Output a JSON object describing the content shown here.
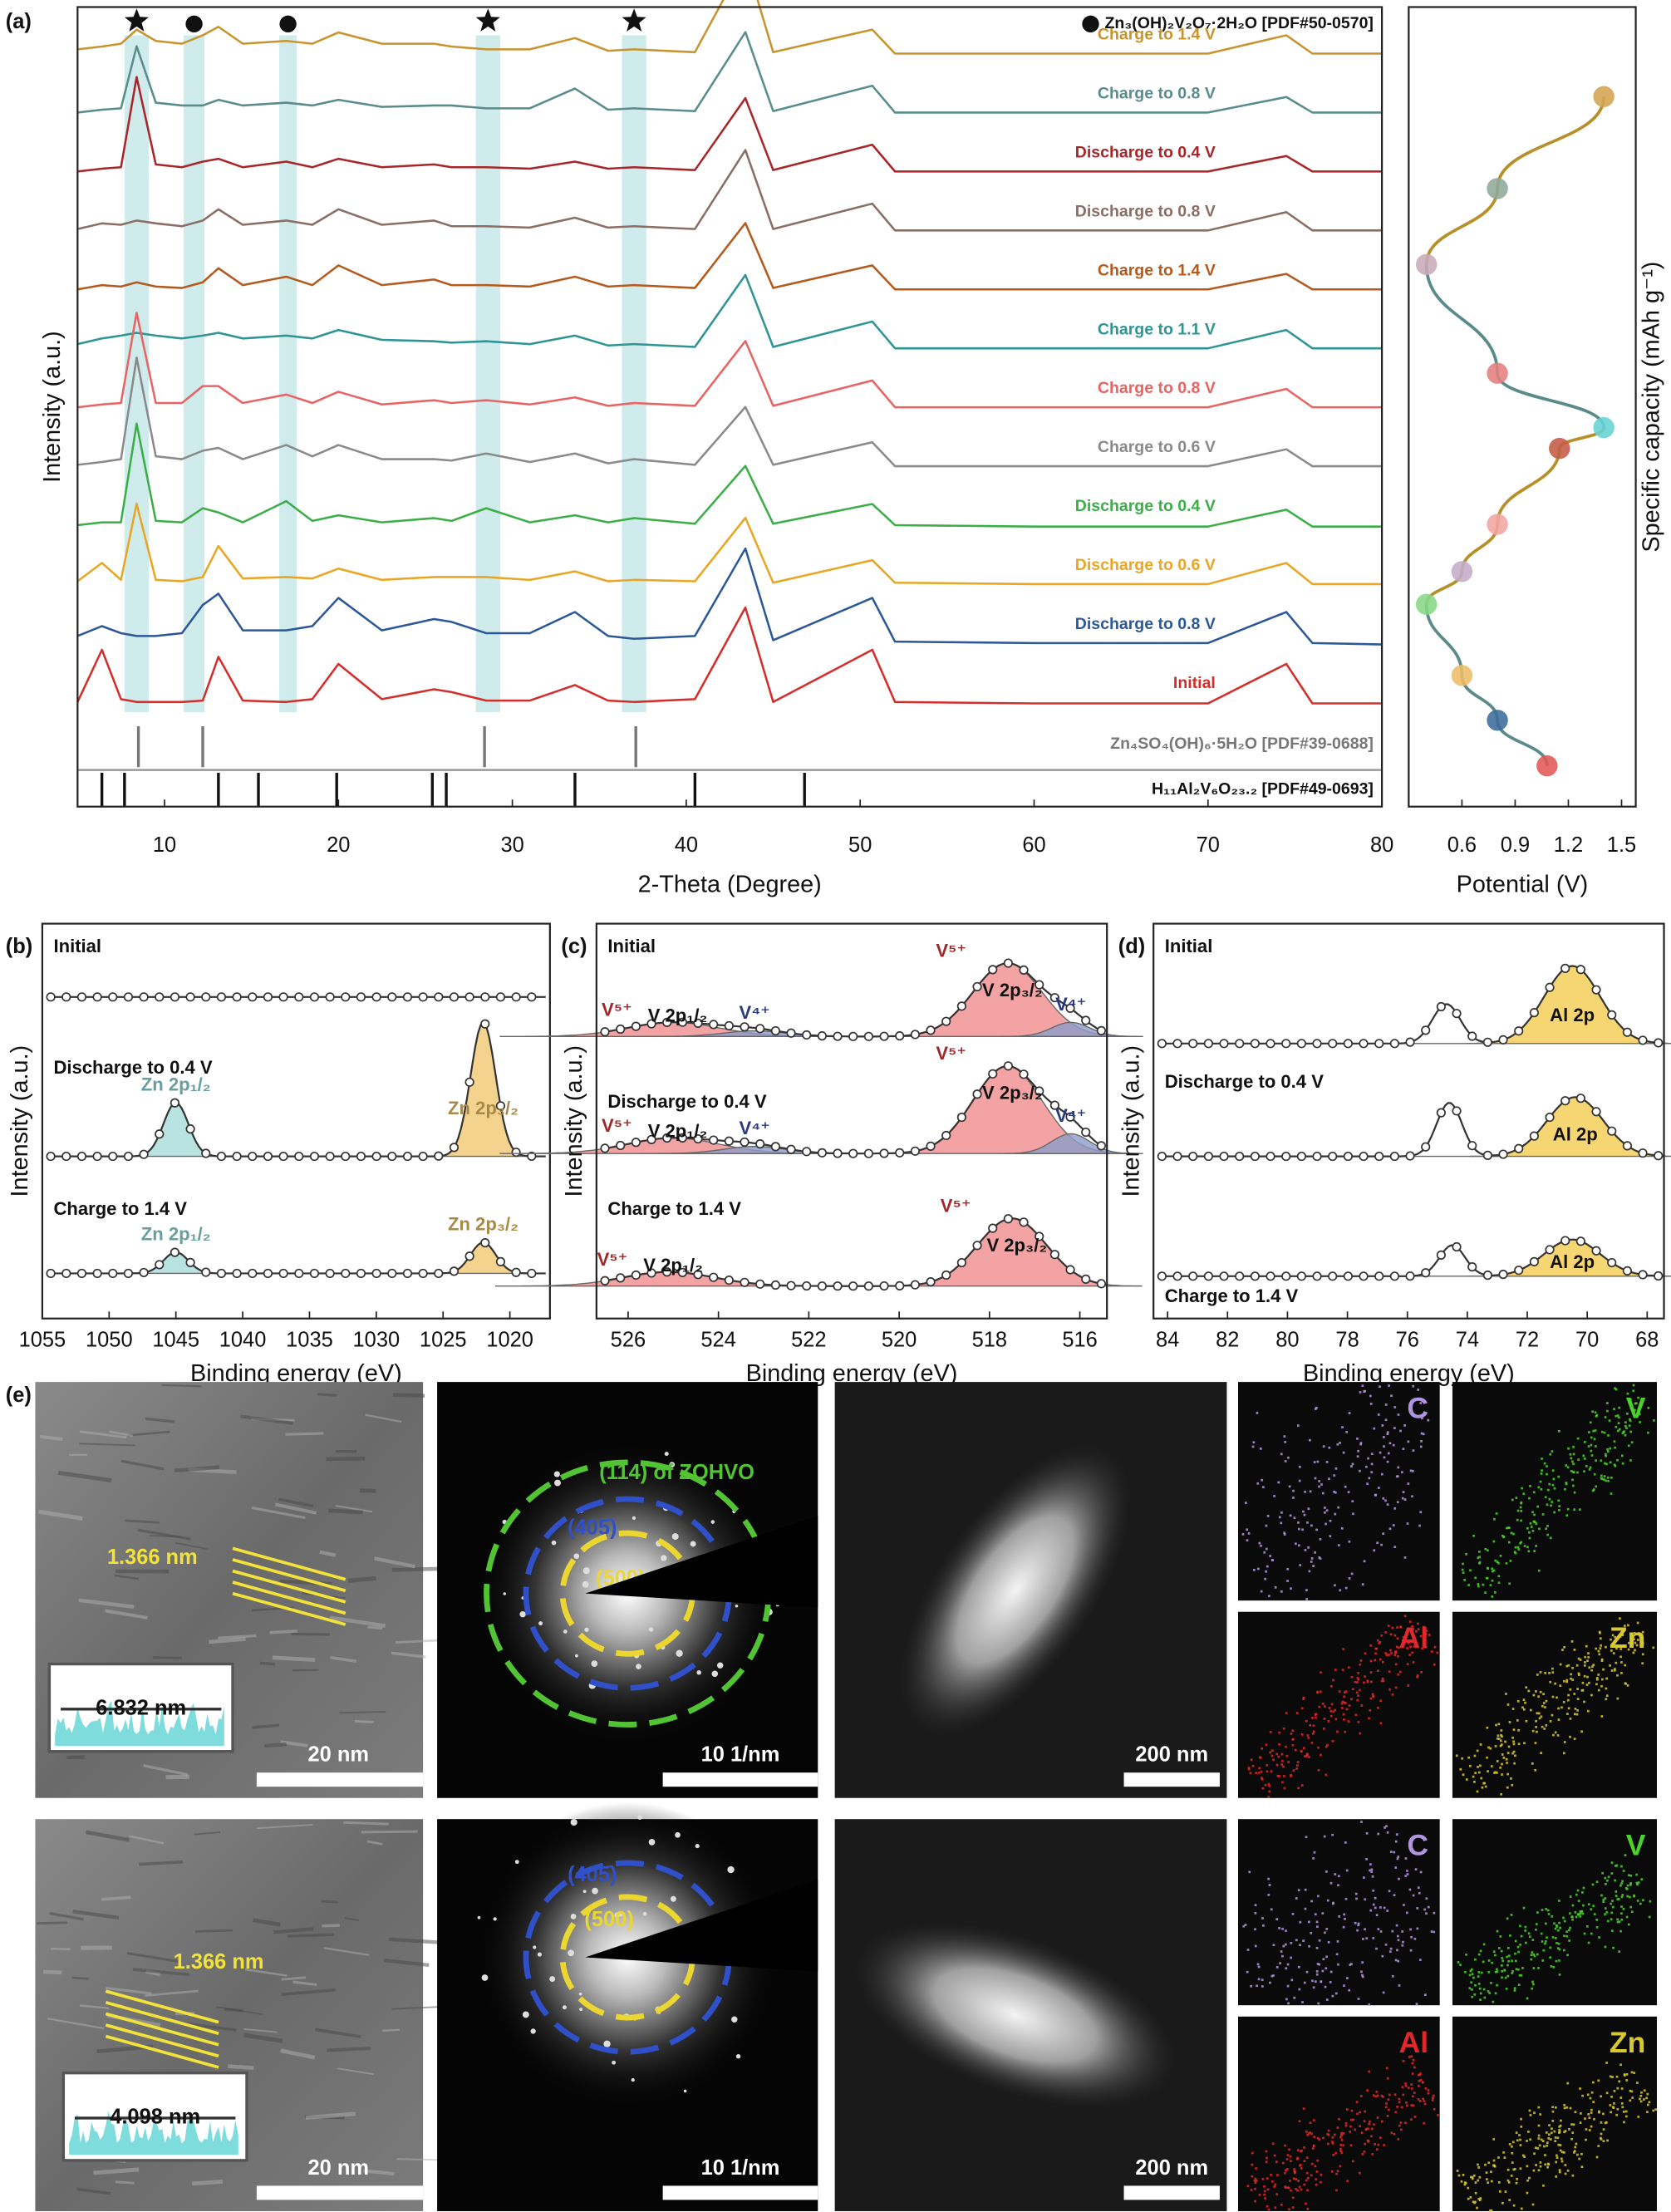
{
  "chart_data": [
    {
      "type": "line",
      "panel_label": "(a)",
      "xlabel": "2-Theta (Degree)",
      "ylabel": "Intensity (a.u.)",
      "xlim": [
        5,
        80
      ],
      "xticks": [
        10,
        20,
        30,
        40,
        50,
        60,
        70,
        80
      ],
      "x": [
        5,
        6.4,
        7.5,
        8.4,
        9.5,
        11,
        12.2,
        13.1,
        14.5,
        17,
        18.5,
        20,
        22.5,
        25.5,
        26.5,
        28.5,
        31,
        33.6,
        35.5,
        37,
        40.5,
        43.4,
        45,
        50.7,
        52,
        60,
        70,
        74.5,
        76,
        80
      ],
      "series": [
        {
          "name": "Charge to 1.4 V",
          "color": "#c8942e",
          "values": [
            6,
            8,
            10,
            20,
            12,
            10,
            16,
            22,
            10,
            12,
            10,
            18,
            10,
            10,
            8,
            6,
            6,
            14,
            5,
            6,
            4,
            70,
            4,
            20,
            3,
            3,
            3,
            16,
            3,
            3
          ]
        },
        {
          "name": "Charge to 0.8 V",
          "color": "#5a8c8c",
          "values": [
            3,
            5,
            6,
            50,
            10,
            8,
            8,
            12,
            8,
            10,
            8,
            12,
            7,
            8,
            8,
            6,
            6,
            20,
            5,
            6,
            4,
            60,
            4,
            22,
            3,
            3,
            3,
            14,
            3,
            3
          ]
        },
        {
          "name": "Discharge to 0.4 V",
          "color": "#a8262a",
          "values": [
            3,
            5,
            6,
            70,
            8,
            6,
            10,
            12,
            6,
            10,
            6,
            12,
            6,
            8,
            6,
            6,
            5,
            10,
            5,
            6,
            4,
            55,
            4,
            22,
            3,
            3,
            3,
            14,
            3,
            3
          ]
        },
        {
          "name": "Discharge to 0.8 V",
          "color": "#8a6e66",
          "values": [
            4,
            8,
            7,
            10,
            8,
            6,
            10,
            18,
            7,
            10,
            7,
            18,
            7,
            10,
            6,
            6,
            5,
            12,
            5,
            6,
            4,
            60,
            4,
            22,
            3,
            3,
            3,
            16,
            3,
            3
          ]
        },
        {
          "name": "Charge to 1.4 V",
          "color": "#b45a1e",
          "values": [
            3,
            6,
            5,
            8,
            5,
            4,
            8,
            18,
            6,
            12,
            6,
            20,
            6,
            10,
            6,
            6,
            5,
            12,
            5,
            6,
            4,
            50,
            4,
            20,
            3,
            3,
            3,
            14,
            3,
            3
          ]
        },
        {
          "name": "Charge to 1.1 V",
          "color": "#2e9494",
          "values": [
            6,
            10,
            12,
            14,
            12,
            10,
            12,
            14,
            10,
            12,
            10,
            16,
            9,
            8,
            7,
            8,
            6,
            12,
            5,
            6,
            4,
            55,
            4,
            22,
            3,
            3,
            3,
            16,
            3,
            3
          ]
        },
        {
          "name": "Charge to 0.8 V",
          "color": "#e86464",
          "values": [
            3,
            5,
            6,
            70,
            6,
            6,
            18,
            18,
            6,
            12,
            6,
            14,
            5,
            8,
            6,
            8,
            5,
            10,
            4,
            6,
            4,
            50,
            4,
            22,
            3,
            3,
            3,
            16,
            3,
            3
          ]
        },
        {
          "name": "Charge to 0.6 V",
          "color": "#8a8a8a",
          "values": [
            4,
            6,
            8,
            80,
            10,
            8,
            14,
            16,
            8,
            18,
            10,
            18,
            8,
            8,
            7,
            12,
            6,
            12,
            5,
            8,
            4,
            45,
            4,
            20,
            3,
            3,
            3,
            15,
            3,
            3
          ]
        },
        {
          "name": "Discharge to 0.4 V",
          "color": "#3cae48",
          "values": [
            3,
            5,
            5,
            75,
            6,
            5,
            15,
            12,
            5,
            20,
            6,
            10,
            5,
            8,
            6,
            15,
            5,
            10,
            5,
            8,
            4,
            45,
            4,
            18,
            3,
            2,
            2,
            14,
            2,
            2
          ]
        },
        {
          "name": "Discharge to 0.6 V",
          "color": "#e8a624",
          "values": [
            5,
            18,
            6,
            60,
            6,
            5,
            8,
            30,
            7,
            8,
            7,
            14,
            6,
            8,
            8,
            8,
            6,
            12,
            5,
            6,
            5,
            50,
            4,
            20,
            4,
            3,
            3,
            18,
            3,
            3
          ]
        },
        {
          "name": "Discharge to 0.8 V",
          "color": "#2c5898",
          "values": [
            8,
            15,
            10,
            8,
            8,
            10,
            30,
            38,
            12,
            12,
            15,
            35,
            12,
            20,
            18,
            10,
            10,
            25,
            8,
            6,
            8,
            70,
            5,
            35,
            4,
            3,
            3,
            25,
            3,
            2
          ]
        },
        {
          "name": "Initial",
          "color": "#d42e2c",
          "values": [
            3,
            40,
            5,
            3,
            3,
            3,
            4,
            35,
            4,
            3,
            5,
            30,
            5,
            12,
            10,
            4,
            4,
            15,
            4,
            3,
            5,
            70,
            3,
            40,
            3,
            2,
            2,
            30,
            2,
            2
          ]
        }
      ],
      "bands": [
        {
          "from": 7.7,
          "to": 9.1,
          "marker": "star"
        },
        {
          "from": 11.1,
          "to": 12.3,
          "marker": "circle"
        },
        {
          "from": 16.6,
          "to": 17.6,
          "marker": "circle"
        },
        {
          "from": 27.9,
          "to": 29.3,
          "marker": "star"
        },
        {
          "from": 36.3,
          "to": 37.7,
          "marker": "star"
        }
      ],
      "band_color": "#a8dada",
      "legend": {
        "marker": "circle",
        "label": "Zn₃(OH)₂V₂O₇·2H₂O [PDF#50-0570]"
      },
      "references": [
        {
          "name": "Zn₄SO₄(OH)₆·5H₂O [PDF#39-0688]",
          "color": "#777777",
          "positions": [
            8.5,
            12.2,
            28.4,
            37.1
          ]
        },
        {
          "name": "H₁₁Al₂V₆O₂₃.₂ [PDF#49-0693]",
          "color": "#111111",
          "positions": [
            6.4,
            7.7,
            13.1,
            15.4,
            19.9,
            25.4,
            26.2,
            33.6,
            40.5,
            46.8
          ]
        }
      ]
    },
    {
      "type": "scatter",
      "xlabel": "Potential (V)",
      "ylabel": "Specific capacity (mAh g⁻¹)",
      "xlim": [
        0.3,
        1.58
      ],
      "xticks": [
        0.6,
        0.9,
        1.2,
        1.5
      ],
      "ylim": [
        0,
        100
      ],
      "x": [
        1.08,
        0.8,
        0.6,
        0.4,
        0.6,
        0.8,
        1.15,
        1.4,
        0.8,
        0.4,
        0.8,
        1.4
      ],
      "values": [
        5.1,
        10.8,
        16.4,
        25.3,
        29.4,
        35.3,
        44.8,
        47.4,
        54.2,
        67.8,
        77.3,
        88.8
      ],
      "colors": [
        "#e25656",
        "#3c6c98",
        "#eebc66",
        "#86d886",
        "#c4acc8",
        "#f2a4a4",
        "#c45a44",
        "#66d4d4",
        "#e48080",
        "#c8aab8",
        "#8ea898",
        "#d4a452"
      ],
      "charge_color": "#b8902a",
      "discharge_color": "#5a8a8a"
    },
    {
      "type": "area",
      "panel_label": "(b)",
      "xlabel": "Binding energy (eV)",
      "ylabel": "Intensity (a.u.)",
      "xlim": [
        1055,
        1017
      ],
      "xticks": [
        1055,
        1050,
        1045,
        1040,
        1035,
        1030,
        1025,
        1020
      ],
      "spectra": [
        {
          "name": "Initial",
          "components": []
        },
        {
          "name": "Discharge to 0.4 V",
          "components": [
            {
              "label": "Zn 2p₁/₂",
              "center": 1045,
              "height": 38,
              "width": 2.2,
              "color": "#a8dcd8",
              "label_color": "#6a9e9e"
            },
            {
              "label": "Zn 2p₃/₂",
              "center": 1022,
              "height": 95,
              "width": 2.2,
              "color": "#f0c870",
              "label_color": "#a88a48"
            }
          ]
        },
        {
          "name": "Charge to 1.4 V",
          "components": [
            {
              "label": "Zn 2p₁/₂",
              "center": 1045,
              "height": 15,
              "width": 2.2,
              "color": "#a8dcd8",
              "label_color": "#6a9e9e"
            },
            {
              "label": "Zn 2p₃/₂",
              "center": 1022,
              "height": 22,
              "width": 2.2,
              "color": "#f0c870",
              "label_color": "#a88a48"
            }
          ]
        }
      ]
    },
    {
      "type": "area",
      "panel_label": "(c)",
      "xlabel": "Binding energy (eV)",
      "ylabel": "Intensity (a.u.)",
      "xlim": [
        526.7,
        515.4
      ],
      "xticks": [
        526,
        524,
        522,
        520,
        518,
        516
      ],
      "spectra": [
        {
          "name": "Initial",
          "components": [
            {
              "label": "V⁵⁺",
              "orbital": "V 2p₁/₂",
              "center": 525,
              "height": 10,
              "width": 2.4,
              "color": "#f08c8c",
              "label_color": "#a0282a"
            },
            {
              "label": "V⁴⁺",
              "center": 523.2,
              "height": 4,
              "width": 1.6,
              "color": "#8c9cc8",
              "label_color": "#2a3a80"
            },
            {
              "label": "V⁵⁺",
              "orbital": "V 2p₃/₂",
              "center": 517.6,
              "height": 52,
              "width": 1.8,
              "color": "#f08c8c",
              "label_color": "#a0282a"
            },
            {
              "label": "V⁴⁺",
              "center": 516.2,
              "height": 10,
              "width": 1,
              "color": "#8c9cc8",
              "label_color": "#2a3a80"
            }
          ]
        },
        {
          "name": "Discharge to 0.4 V",
          "components": [
            {
              "label": "V⁵⁺",
              "orbital": "V 2p₁/₂",
              "center": 525,
              "height": 11,
              "width": 2.4,
              "color": "#f08c8c",
              "label_color": "#a0282a"
            },
            {
              "label": "V⁴⁺",
              "center": 523.2,
              "height": 5,
              "width": 1.6,
              "color": "#8c9cc8",
              "label_color": "#2a3a80"
            },
            {
              "label": "V⁵⁺",
              "orbital": "V 2p₃/₂",
              "center": 517.6,
              "height": 62,
              "width": 1.8,
              "color": "#f08c8c",
              "label_color": "#a0282a"
            },
            {
              "label": "V⁴⁺",
              "center": 516.2,
              "height": 14,
              "width": 1,
              "color": "#8c9cc8",
              "label_color": "#2a3a80"
            }
          ]
        },
        {
          "name": "Charge to 1.4 V",
          "components": [
            {
              "label": "V⁵⁺",
              "orbital": "V 2p₁/₂",
              "center": 525.1,
              "height": 10,
              "width": 2.4,
              "color": "#f08c8c",
              "label_color": "#a0282a"
            },
            {
              "label": "V⁵⁺",
              "orbital": "V 2p₃/₂",
              "center": 517.5,
              "height": 48,
              "width": 1.8,
              "color": "#f08c8c",
              "label_color": "#a0282a"
            }
          ]
        }
      ]
    },
    {
      "type": "area",
      "panel_label": "(d)",
      "xlabel": "Binding energy (eV)",
      "ylabel": "Intensity (a.u.)",
      "xlim": [
        84.47,
        67.44
      ],
      "xticks": [
        84,
        82,
        80,
        78,
        76,
        74,
        72,
        70,
        68
      ],
      "spectra": [
        {
          "name": "Initial",
          "components": [
            {
              "center": 74.7,
              "height": 28,
              "width": 1.1,
              "color": "#ffffff"
            },
            {
              "label": "Al 2p",
              "center": 70.5,
              "height": 55,
              "width": 2.2,
              "color": "#f2cc50",
              "label_color": "#111111"
            }
          ]
        },
        {
          "name": "Discharge to 0.4 V",
          "components": [
            {
              "center": 74.6,
              "height": 38,
              "width": 1,
              "color": "#ffffff"
            },
            {
              "label": "Al 2p",
              "center": 70.4,
              "height": 42,
              "width": 2.2,
              "color": "#f2cc50",
              "label_color": "#111111"
            }
          ]
        },
        {
          "name": "Charge to 1.4 V",
          "components": [
            {
              "center": 74.5,
              "height": 22,
              "width": 1,
              "color": "#ffffff"
            },
            {
              "label": "Al 2p",
              "center": 70.5,
              "height": 26,
              "width": 2.2,
              "color": "#f2cc50",
              "label_color": "#111111"
            }
          ]
        }
      ]
    }
  ],
  "figure_e": {
    "panel_label": "(e)",
    "rows": [
      {
        "hrtem": {
          "lattice": "1.366 nm",
          "profile": "6.832 nm",
          "scale": "20 nm"
        },
        "saed": {
          "rings": [
            {
              "label": "(114) of ZOHVO",
              "color": "#52c434"
            },
            {
              "label": "(405̄)",
              "color": "#2f50c8"
            },
            {
              "label": "(500)",
              "color": "#ecd632"
            }
          ],
          "scale": "10 1/nm"
        },
        "haadf": {
          "scale": "200 nm"
        },
        "maps": [
          {
            "element": "C",
            "color": "#b094e0"
          },
          {
            "element": "V",
            "color": "#4cd02c"
          },
          {
            "element": "Al",
            "color": "#e02828"
          },
          {
            "element": "Zn",
            "color": "#d8c830"
          }
        ]
      },
      {
        "hrtem": {
          "lattice": "1.366 nm",
          "profile": "4.098 nm",
          "scale": "20 nm"
        },
        "saed": {
          "rings": [
            {
              "label": "(405̄)",
              "color": "#2f50c8"
            },
            {
              "label": "(500)",
              "color": "#ecd632"
            }
          ],
          "scale": "10 1/nm"
        },
        "haadf": {
          "scale": "200 nm"
        },
        "maps": [
          {
            "element": "C",
            "color": "#b094e0"
          },
          {
            "element": "V",
            "color": "#4cd02c"
          },
          {
            "element": "Al",
            "color": "#e02828"
          },
          {
            "element": "Zn",
            "color": "#d8c830"
          }
        ]
      }
    ]
  }
}
